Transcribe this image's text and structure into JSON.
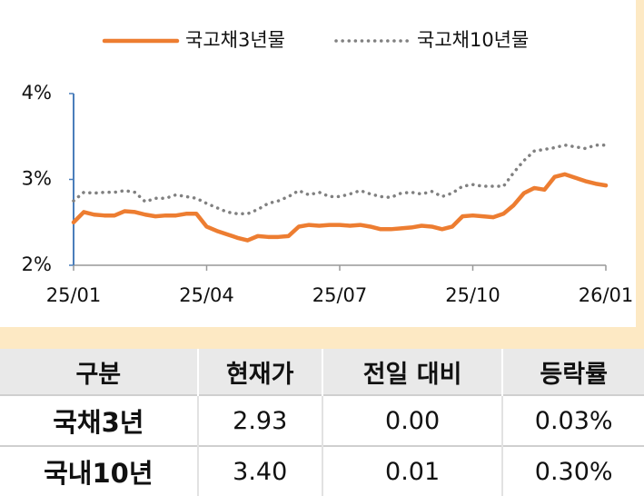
{
  "chart_data": {
    "type": "line",
    "x": [
      0,
      1,
      2,
      3,
      4,
      5,
      6,
      7,
      8,
      9,
      10,
      11,
      12,
      13,
      14,
      15,
      16,
      17,
      18,
      19,
      20,
      21,
      22,
      23,
      24,
      25,
      26,
      27,
      28,
      29,
      30,
      31,
      32,
      33,
      34,
      35,
      36,
      37,
      38,
      39,
      40,
      41,
      42,
      43,
      44,
      45,
      46,
      47,
      48,
      49,
      50,
      51,
      52
    ],
    "series": [
      {
        "name": "국고채3년물",
        "color": "#ed7d31",
        "style": "solid",
        "values": [
          2.5,
          2.62,
          2.59,
          2.58,
          2.58,
          2.63,
          2.62,
          2.59,
          2.57,
          2.58,
          2.58,
          2.6,
          2.6,
          2.45,
          2.4,
          2.36,
          2.32,
          2.29,
          2.34,
          2.33,
          2.33,
          2.34,
          2.45,
          2.47,
          2.46,
          2.47,
          2.47,
          2.46,
          2.47,
          2.45,
          2.42,
          2.42,
          2.43,
          2.44,
          2.46,
          2.45,
          2.42,
          2.45,
          2.57,
          2.58,
          2.57,
          2.56,
          2.6,
          2.7,
          2.84,
          2.9,
          2.88,
          3.03,
          3.06,
          3.02,
          2.98,
          2.95,
          2.93
        ]
      },
      {
        "name": "국고채10년물",
        "color": "#808080",
        "style": "dotted",
        "values": [
          2.75,
          2.85,
          2.84,
          2.85,
          2.85,
          2.87,
          2.85,
          2.74,
          2.78,
          2.78,
          2.82,
          2.8,
          2.78,
          2.72,
          2.67,
          2.62,
          2.6,
          2.6,
          2.65,
          2.72,
          2.75,
          2.8,
          2.87,
          2.82,
          2.85,
          2.8,
          2.8,
          2.83,
          2.87,
          2.83,
          2.8,
          2.79,
          2.84,
          2.85,
          2.83,
          2.86,
          2.8,
          2.84,
          2.92,
          2.94,
          2.92,
          2.92,
          2.92,
          3.08,
          3.22,
          3.33,
          3.35,
          3.37,
          3.4,
          3.38,
          3.36,
          3.4,
          3.4
        ]
      }
    ],
    "xlim": [
      0,
      52
    ],
    "xticks": [
      {
        "value": 0,
        "label": "25/01"
      },
      {
        "value": 13,
        "label": "25/04"
      },
      {
        "value": 26,
        "label": "25/07"
      },
      {
        "value": 39,
        "label": "25/10"
      },
      {
        "value": 52,
        "label": "26/01"
      }
    ],
    "ylim": [
      2,
      4
    ],
    "yticks": [
      {
        "value": 2,
        "label": "2%"
      },
      {
        "value": 3,
        "label": "3%"
      },
      {
        "value": 4,
        "label": "4%"
      }
    ],
    "grid": false,
    "legend": "top"
  },
  "table": {
    "header": [
      "구분",
      "현재가",
      "전일 대비",
      "등락률"
    ],
    "rows": [
      [
        "국채3년",
        "2.93",
        "0.00",
        "0.03%"
      ],
      [
        "국내10년",
        "3.40",
        "0.01",
        "0.30%"
      ]
    ]
  }
}
